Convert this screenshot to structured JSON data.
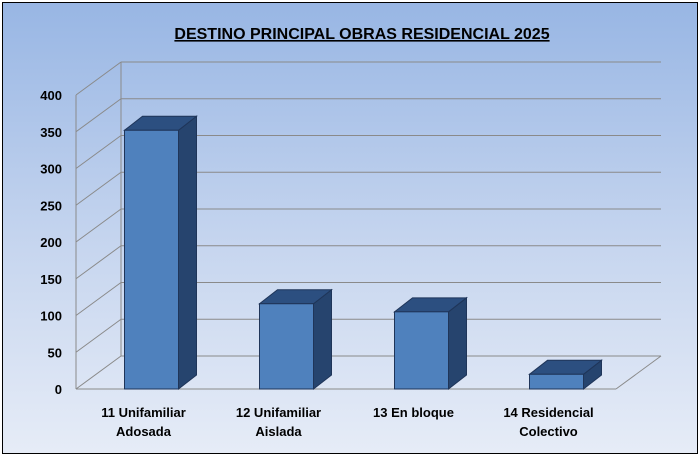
{
  "chart_data": {
    "type": "bar",
    "title": "DESTINO PRINCIPAL OBRAS RESIDENCIAL 2025",
    "xlabel": "",
    "ylabel": "",
    "categories": [
      [
        "11 Unifamiliar",
        "Adosada"
      ],
      [
        "12 Unifamiliar",
        "Aislada"
      ],
      [
        "13 En bloque"
      ],
      [
        "14 Residencial",
        "Colectivo"
      ]
    ],
    "values": [
      352,
      116,
      105,
      20
    ],
    "ylim": [
      0,
      400
    ],
    "yticks": [
      0,
      50,
      100,
      150,
      200,
      250,
      300,
      350,
      400
    ],
    "grid": true,
    "legend": "none",
    "colors": {
      "bar_front": "#4f81bd",
      "bar_top": "#2c4f80",
      "bar_side": "#26446e",
      "grid": "#8a8a8a",
      "frame_border": "#000000"
    }
  }
}
